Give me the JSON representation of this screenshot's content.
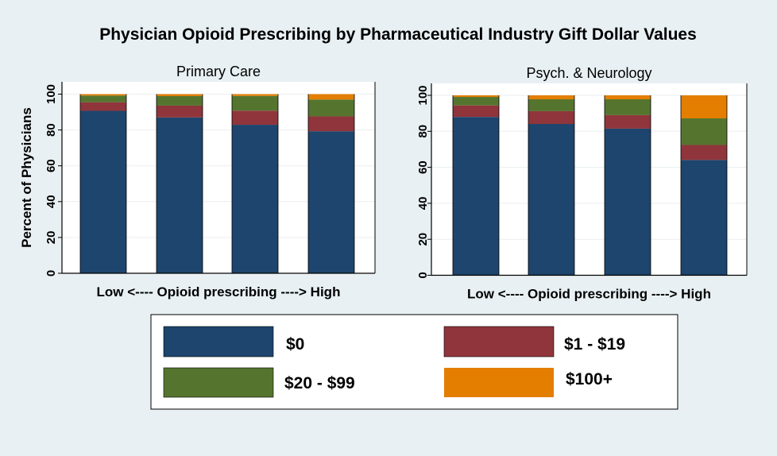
{
  "title": "Physician Opioid Prescribing by  Pharmaceutical Industry Gift Dollar Values",
  "colors": {
    "$0": "#1d456d",
    "$1 - $19": "#90353b",
    "$20 - $99": "#55752f",
    "$100+": "#e37e00",
    "background": "#e8f0f3"
  },
  "legend": [
    "$0",
    "$1 - $19",
    "$20 - $99",
    "$100+"
  ],
  "chart_data": [
    {
      "type": "bar",
      "stacked": true,
      "title": "Primary Care",
      "xlabel": "Low <---- Opioid prescribing ----> High",
      "ylabel": "Percent of Physicians",
      "ylim": [
        0,
        100
      ],
      "yticks": [
        "0",
        "20",
        "40",
        "60",
        "80",
        "100"
      ],
      "grid": true,
      "categories": [
        "1",
        "2",
        "3",
        "4"
      ],
      "series": [
        {
          "name": "$0",
          "values": [
            90.7,
            87.0,
            82.9,
            79.3
          ]
        },
        {
          "name": "$1 - $19",
          "values": [
            4.8,
            6.6,
            7.9,
            8.3
          ]
        },
        {
          "name": "$20 - $99",
          "values": [
            3.7,
            5.3,
            8.2,
            9.4
          ]
        },
        {
          "name": "$100+",
          "values": [
            0.8,
            1.1,
            1.0,
            3.0
          ]
        }
      ]
    },
    {
      "type": "bar",
      "stacked": true,
      "title": "Psych. & Neurology",
      "xlabel": "Low <---- Opioid prescribing ----> High",
      "ylabel": "",
      "ylim": [
        0,
        100
      ],
      "yticks": [
        "0",
        "20",
        "40",
        "60",
        "80",
        "100"
      ],
      "grid": true,
      "categories": [
        "1",
        "2",
        "3",
        "4"
      ],
      "series": [
        {
          "name": "$0",
          "values": [
            88.0,
            84.1,
            81.5,
            64.1
          ]
        },
        {
          "name": "$1 - $19",
          "values": [
            6.4,
            7.1,
            7.5,
            8.3
          ]
        },
        {
          "name": "$20 - $99",
          "values": [
            4.7,
            6.6,
            8.8,
            14.8
          ]
        },
        {
          "name": "$100+",
          "values": [
            0.9,
            2.2,
            2.2,
            12.8
          ]
        }
      ]
    }
  ]
}
